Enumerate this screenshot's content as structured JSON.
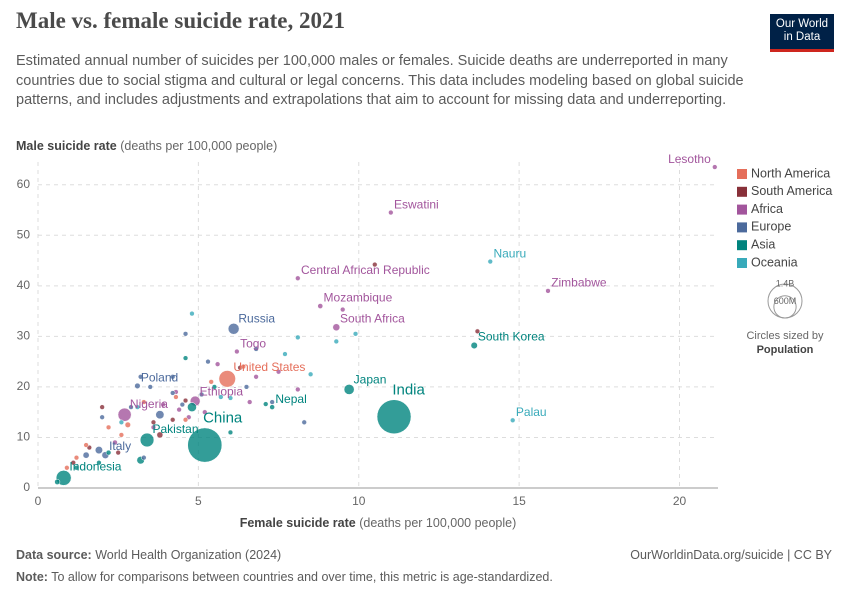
{
  "header": {
    "title": "Male vs. female suicide rate, 2021",
    "subtitle": "Estimated annual number of suicides per 100,000 males or females. Suicide deaths are underreported in many countries due to social stigma and cultural or legal concerns. This data includes modeling based on global suicide patterns, and includes adjustments and extrapolations that aim to account for missing data and underreporting.",
    "logo": [
      "Our World",
      "in Data"
    ]
  },
  "chart_data": {
    "type": "scatter",
    "y_label": "Male suicide rate",
    "y_label_unit": "(deaths per 100,000 people)",
    "x_label": "Female suicide rate",
    "x_label_unit": "(deaths per 100,000 people)",
    "xlim": [
      0,
      21.2
    ],
    "ylim": [
      0,
      64.5
    ],
    "xticks": [
      0,
      5,
      10,
      15,
      20
    ],
    "yticks": [
      0,
      10,
      20,
      30,
      40,
      50,
      60
    ],
    "grid": true,
    "size_legend": {
      "ticks": [
        {
          "value": 1400,
          "label": "1.4B"
        },
        {
          "value": 600,
          "label": "600M"
        }
      ],
      "caption": "Circles sized by",
      "variable": "Population"
    },
    "series": [
      {
        "name": "North America",
        "color": "#e56e5a",
        "x": [
          5.9,
          1.5,
          2.2,
          2.6,
          3.3,
          4.3,
          1.2,
          2.8,
          4.6,
          5.4,
          6.4,
          0.9
        ],
        "values": [
          21.6,
          8.5,
          12,
          10.5,
          17,
          18,
          6,
          12.5,
          13.5,
          21,
          24,
          4
        ],
        "sizes": [
          335,
          1,
          4,
          10,
          1,
          4,
          3,
          38,
          0.1,
          0.4,
          0.3,
          2
        ],
        "labels": [
          "United States",
          null,
          null,
          null,
          null,
          null,
          null,
          null,
          null,
          null,
          null,
          null
        ]
      },
      {
        "name": "South America",
        "color": "#883039",
        "x": [
          2,
          3.8,
          3.6,
          1.6,
          2.5,
          4.2,
          6.3,
          10.5,
          4.6,
          13.7,
          1.1
        ],
        "values": [
          16,
          10.5,
          13,
          8,
          7,
          13.5,
          23.8,
          44.2,
          17.3,
          31,
          5
        ],
        "sizes": [
          1,
          45,
          20,
          12,
          2,
          7,
          0.8,
          0.6,
          3,
          0.8,
          0.2
        ],
        "labels": [
          null,
          null,
          null,
          null,
          null,
          null,
          null,
          null,
          null,
          null,
          null
        ]
      },
      {
        "name": "Africa",
        "color": "#a2559c",
        "x": [
          21.1,
          11,
          8.1,
          8.8,
          9.3,
          6.2,
          15.9,
          2.7,
          4.9,
          9.5,
          5.6,
          4.3,
          3.9,
          6.8,
          7.5,
          5.2,
          3.6,
          4.7,
          6.6,
          2.4,
          4.4,
          8.1
        ],
        "values": [
          63.5,
          54.5,
          41.5,
          36,
          31.8,
          27,
          39,
          14.5,
          17.2,
          35.3,
          24.5,
          19,
          16.5,
          22,
          23,
          15,
          12,
          14,
          17,
          9,
          15.5,
          19.5
        ],
        "sizes": [
          2.3,
          1.2,
          5.5,
          32,
          60,
          8.6,
          16,
          213,
          120,
          0.3,
          10,
          12,
          20,
          5,
          3,
          28,
          15,
          9,
          6,
          30,
          19,
          2
        ],
        "labels": [
          "Lesotho",
          "Eswatini",
          "Central African Republic",
          "Mozambique",
          "South Africa",
          "Togo",
          "Zimbabwe",
          "Nigeria",
          "Ethiopia",
          null,
          null,
          null,
          null,
          null,
          null,
          null,
          null,
          null,
          null,
          null,
          null,
          null
        ]
      },
      {
        "name": "Europe",
        "color": "#4c6a9c",
        "x": [
          6.1,
          3.1,
          2.1,
          4.6,
          6.8,
          5.3,
          4.2,
          3.5,
          2.9,
          3.2,
          4.2,
          7.3,
          8.3,
          2,
          3.3,
          1.9,
          1.5,
          4.5,
          5.1,
          6.5,
          3.8
        ],
        "values": [
          31.5,
          20.2,
          6.5,
          30.5,
          27.5,
          25,
          22,
          20,
          16,
          22,
          18.8,
          17,
          13,
          14,
          6,
          7.5,
          6.5,
          16.5,
          18.5,
          20,
          14.5
        ],
        "sizes": [
          145,
          38,
          59,
          10,
          3,
          6,
          3,
          1,
          5,
          0.5,
          2,
          2,
          5,
          11,
          0.5,
          67,
          47,
          1.9,
          9,
          1.3,
          84
        ],
        "labels": [
          "Russia",
          "Poland",
          "Italy",
          null,
          null,
          null,
          null,
          null,
          null,
          null,
          null,
          null,
          null,
          null,
          null,
          null,
          null,
          null,
          null,
          null,
          null
        ]
      },
      {
        "name": "Asia",
        "color": "#00847e",
        "x": [
          13.6,
          9.7,
          11.1,
          5.2,
          3.4,
          0.8,
          7.3,
          4.6,
          2.2,
          1.2,
          0.6,
          4.8,
          3.2,
          6,
          5.5,
          1.9,
          7.1
        ],
        "values": [
          28.2,
          19.5,
          14.1,
          8.5,
          9.5,
          2,
          16,
          25.7,
          7,
          4,
          1.2,
          16,
          5.5,
          11,
          20,
          5,
          16.6
        ],
        "sizes": [
          52,
          125,
          1400,
          1420,
          230,
          275,
          30,
          7,
          30,
          20,
          35,
          100,
          70,
          17,
          5,
          25,
          1
        ],
        "labels": [
          "South Korea",
          "Japan",
          "India",
          "China",
          "Pakistan",
          "Indonesia",
          "Nepal",
          null,
          null,
          null,
          null,
          null,
          null,
          null,
          null,
          null,
          null
        ]
      },
      {
        "name": "Oceania",
        "color": "#38aaba",
        "x": [
          14.1,
          14.8,
          4.8,
          8.1,
          7.7,
          9.9,
          9.3,
          8.5,
          5.7,
          3.1,
          2.6,
          6
        ],
        "values": [
          44.8,
          13.4,
          34.5,
          29.8,
          26.5,
          30.5,
          29,
          22.5,
          18,
          16,
          13,
          17.8
        ],
        "sizes": [
          0.012,
          0.018,
          0.05,
          0.3,
          0.1,
          0.1,
          0.2,
          0.9,
          0.2,
          26,
          5,
          0.3
        ],
        "labels": [
          "Nauru",
          "Palau",
          null,
          null,
          null,
          null,
          null,
          null,
          null,
          null,
          null,
          null
        ]
      }
    ]
  },
  "footer": {
    "source_label": "Data source:",
    "source": "World Health Organization (2024)",
    "url": "OurWorldinData.org/suicide | CC BY",
    "note_label": "Note:",
    "note": "To allow for comparisons between countries and over time, this metric is age-standardized."
  }
}
